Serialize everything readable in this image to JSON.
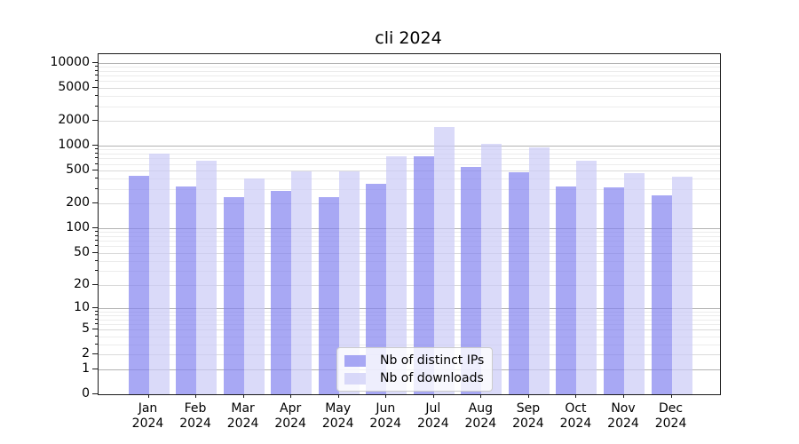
{
  "chart_data": {
    "type": "bar",
    "title": "cli 2024",
    "yscale": "log1p",
    "ylim": [
      0,
      12700
    ],
    "grid": true,
    "legend_position": "inside-bottom-center",
    "yticks": [
      0,
      1,
      2,
      5,
      10,
      20,
      50,
      100,
      200,
      500,
      1000,
      2000,
      5000,
      10000
    ],
    "categories": [
      {
        "month": "Jan",
        "year": "2024"
      },
      {
        "month": "Feb",
        "year": "2024"
      },
      {
        "month": "Mar",
        "year": "2024"
      },
      {
        "month": "Apr",
        "year": "2024"
      },
      {
        "month": "May",
        "year": "2024"
      },
      {
        "month": "Jun",
        "year": "2024"
      },
      {
        "month": "Jul",
        "year": "2024"
      },
      {
        "month": "Aug",
        "year": "2024"
      },
      {
        "month": "Sep",
        "year": "2024"
      },
      {
        "month": "Oct",
        "year": "2024"
      },
      {
        "month": "Nov",
        "year": "2024"
      },
      {
        "month": "Dec",
        "year": "2024"
      }
    ],
    "series": [
      {
        "key": "distinct-ips",
        "name": "Nb of distinct IPs",
        "color": "rgba(131,131,240,0.7)",
        "values": [
          435,
          320,
          240,
          285,
          240,
          350,
          745,
          550,
          480,
          325,
          315,
          250
        ]
      },
      {
        "key": "downloads",
        "name": "Nb of downloads",
        "color": "rgba(203,203,246,0.7)",
        "values": [
          800,
          655,
          400,
          490,
          495,
          745,
          1670,
          1050,
          960,
          660,
          460,
          425
        ]
      }
    ]
  },
  "colors": {
    "background": "#ffffff",
    "axis": "#1a1a1a",
    "text": "#000000",
    "grid_major": "#b3b3b3",
    "grid_mid": "#dadada",
    "grid_minor": "#ececec",
    "legend_background": "rgba(255,255,255,0.8)",
    "legend_border": "#cccccc"
  }
}
